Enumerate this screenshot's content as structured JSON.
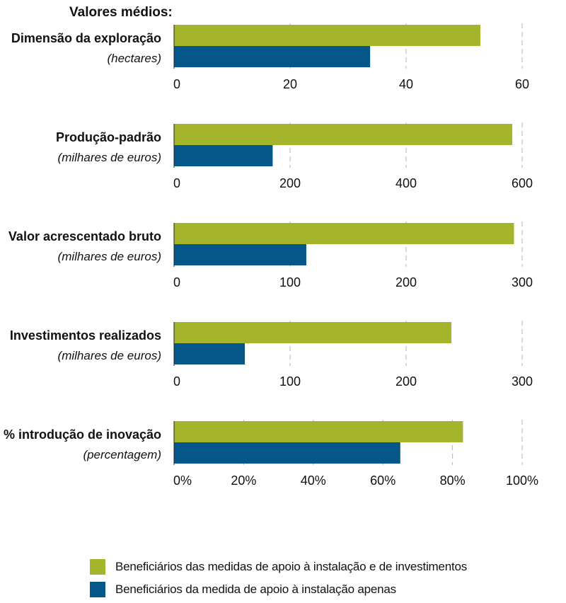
{
  "chart_data": {
    "type": "bar",
    "orientation": "horizontal",
    "heading": "Valores médios:",
    "colors": {
      "series_1": "#a4b52b",
      "series_2": "#05578a",
      "grid": "#b3b3b3"
    },
    "series_names": [
      "Beneficiários das medidas de apoio à instalação e de investimentos",
      "Beneficiários da medida de apoio à instalação apenas"
    ],
    "panels": [
      {
        "title": "Dimensão da exploração",
        "unit": "(hectares)",
        "xlim": [
          0,
          60
        ],
        "ticks": [
          0,
          20,
          40,
          60
        ],
        "tick_labels": [
          "0",
          "20",
          "40",
          "60"
        ],
        "values": [
          52.8,
          33.8
        ]
      },
      {
        "title": "Produção-padrão",
        "unit": "(milhares de euros)",
        "xlim": [
          0,
          600
        ],
        "ticks": [
          0,
          200,
          400,
          600
        ],
        "tick_labels": [
          "0",
          "200",
          "400",
          "600"
        ],
        "values": [
          583,
          170
        ]
      },
      {
        "title": "Valor acrescentado bruto",
        "unit": "(milhares de euros)",
        "xlim": [
          0,
          300
        ],
        "ticks": [
          0,
          100,
          200,
          300
        ],
        "tick_labels": [
          "0",
          "100",
          "200",
          "300"
        ],
        "values": [
          293,
          114
        ]
      },
      {
        "title": "Investimentos realizados",
        "unit": "(milhares de euros)",
        "xlim": [
          0,
          300
        ],
        "ticks": [
          0,
          100,
          200,
          300
        ],
        "tick_labels": [
          "0",
          "100",
          "200",
          "300"
        ],
        "values": [
          239,
          61
        ]
      },
      {
        "title": "% introdução de inovação",
        "unit": "(percentagem)",
        "xlim": [
          0,
          100
        ],
        "ticks": [
          0,
          20,
          40,
          60,
          80,
          100
        ],
        "tick_labels": [
          "0%",
          "20%",
          "40%",
          "60%",
          "80%",
          "100%"
        ],
        "values": [
          83,
          65
        ]
      }
    ]
  }
}
